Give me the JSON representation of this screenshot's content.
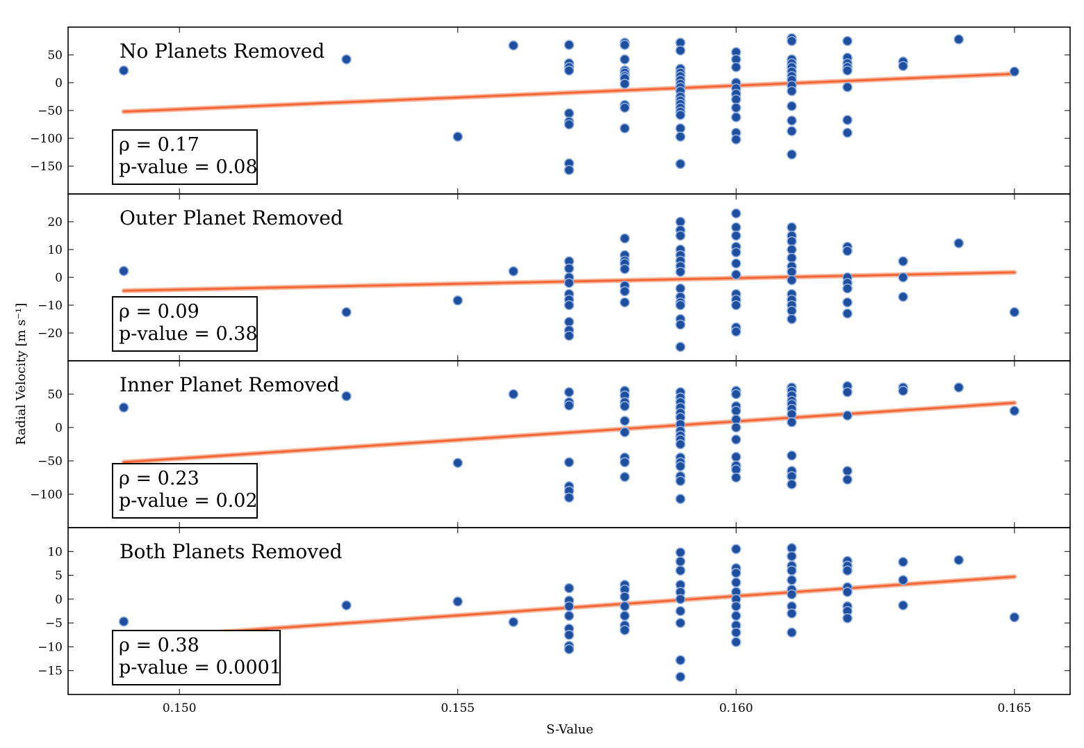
{
  "colors": {
    "points": "#1f4e9e",
    "fit": "#f2663a",
    "fit_glow": "#f8b99c"
  },
  "chart_data": {
    "type": "scatter",
    "xlabel": "S-Value",
    "ylabel": "Radial Velocity [m s⁻¹]",
    "xlim": [
      0.148,
      0.166
    ],
    "xticks": [
      "0.150",
      "0.155",
      "0.160",
      "0.165"
    ],
    "xtick_values": [
      0.15,
      0.155,
      0.16,
      0.165
    ],
    "panels": [
      {
        "title": "No Planets Removed",
        "rho_label": "ρ = 0.17",
        "pvalue_label": "p-value = 0.08",
        "ylim": [
          -200,
          100
        ],
        "yticks": [
          50,
          0,
          -50,
          -100,
          -150
        ],
        "ytick_labels": [
          "50",
          "0",
          "−50",
          "−100",
          "−150"
        ],
        "fit": {
          "x": [
            0.149,
            0.165
          ],
          "y": [
            -52,
            16
          ]
        },
        "points": [
          [
            0.149,
            22
          ],
          [
            0.153,
            42
          ],
          [
            0.155,
            -97
          ],
          [
            0.156,
            67
          ],
          [
            0.157,
            68
          ],
          [
            0.157,
            35
          ],
          [
            0.157,
            28
          ],
          [
            0.157,
            22
          ],
          [
            0.157,
            -55
          ],
          [
            0.157,
            -70
          ],
          [
            0.157,
            -75
          ],
          [
            0.157,
            -145
          ],
          [
            0.157,
            -157
          ],
          [
            0.158,
            72
          ],
          [
            0.158,
            68
          ],
          [
            0.158,
            42
          ],
          [
            0.158,
            22
          ],
          [
            0.158,
            18
          ],
          [
            0.158,
            12
          ],
          [
            0.158,
            8
          ],
          [
            0.158,
            -2
          ],
          [
            0.158,
            -40
          ],
          [
            0.158,
            -45
          ],
          [
            0.158,
            -82
          ],
          [
            0.159,
            72
          ],
          [
            0.159,
            58
          ],
          [
            0.159,
            25
          ],
          [
            0.159,
            18
          ],
          [
            0.159,
            12
          ],
          [
            0.159,
            5
          ],
          [
            0.159,
            -2
          ],
          [
            0.159,
            -8
          ],
          [
            0.159,
            -15
          ],
          [
            0.159,
            -25
          ],
          [
            0.159,
            -32
          ],
          [
            0.159,
            -38
          ],
          [
            0.159,
            -45
          ],
          [
            0.159,
            -52
          ],
          [
            0.159,
            -58
          ],
          [
            0.159,
            -82
          ],
          [
            0.159,
            -97
          ],
          [
            0.159,
            -146
          ],
          [
            0.16,
            55
          ],
          [
            0.16,
            42
          ],
          [
            0.16,
            28
          ],
          [
            0.16,
            0
          ],
          [
            0.16,
            -10
          ],
          [
            0.16,
            -20
          ],
          [
            0.16,
            -30
          ],
          [
            0.16,
            -45
          ],
          [
            0.16,
            -62
          ],
          [
            0.16,
            -90
          ],
          [
            0.16,
            -102
          ],
          [
            0.161,
            80
          ],
          [
            0.161,
            75
          ],
          [
            0.161,
            42
          ],
          [
            0.161,
            35
          ],
          [
            0.161,
            28
          ],
          [
            0.161,
            20
          ],
          [
            0.161,
            12
          ],
          [
            0.161,
            5
          ],
          [
            0.161,
            -5
          ],
          [
            0.161,
            -15
          ],
          [
            0.161,
            -42
          ],
          [
            0.161,
            -68
          ],
          [
            0.161,
            -87
          ],
          [
            0.161,
            -129
          ],
          [
            0.162,
            75
          ],
          [
            0.162,
            45
          ],
          [
            0.162,
            35
          ],
          [
            0.162,
            28
          ],
          [
            0.162,
            22
          ],
          [
            0.162,
            -8
          ],
          [
            0.162,
            -67
          ],
          [
            0.162,
            -90
          ],
          [
            0.163,
            38
          ],
          [
            0.163,
            30
          ],
          [
            0.164,
            78
          ],
          [
            0.165,
            20
          ]
        ]
      },
      {
        "title": "Outer Planet Removed",
        "rho_label": "ρ = 0.09",
        "pvalue_label": "p-value = 0.38",
        "ylim": [
          -30,
          30
        ],
        "yticks": [
          20,
          10,
          0,
          -10,
          -20
        ],
        "ytick_labels": [
          "20",
          "10",
          "0",
          "−10",
          "−20"
        ],
        "fit": {
          "x": [
            0.149,
            0.165
          ],
          "y": [
            -4.8,
            1.8
          ]
        },
        "points": [
          [
            0.149,
            2.3
          ],
          [
            0.153,
            -12.5
          ],
          [
            0.155,
            -8.3
          ],
          [
            0.156,
            2.2
          ],
          [
            0.157,
            5.8
          ],
          [
            0.157,
            3.2
          ],
          [
            0.157,
            0
          ],
          [
            0.157,
            -2
          ],
          [
            0.157,
            -6
          ],
          [
            0.157,
            -8
          ],
          [
            0.157,
            -10
          ],
          [
            0.157,
            -16
          ],
          [
            0.157,
            -19
          ],
          [
            0.157,
            -21
          ],
          [
            0.158,
            14
          ],
          [
            0.158,
            8
          ],
          [
            0.158,
            6
          ],
          [
            0.158,
            5
          ],
          [
            0.158,
            3
          ],
          [
            0.158,
            -3
          ],
          [
            0.158,
            -5
          ],
          [
            0.158,
            -9
          ],
          [
            0.159,
            20
          ],
          [
            0.159,
            17
          ],
          [
            0.159,
            15
          ],
          [
            0.159,
            10
          ],
          [
            0.159,
            8
          ],
          [
            0.159,
            6
          ],
          [
            0.159,
            4
          ],
          [
            0.159,
            2
          ],
          [
            0.159,
            -4
          ],
          [
            0.159,
            -7
          ],
          [
            0.159,
            -9
          ],
          [
            0.159,
            -10
          ],
          [
            0.159,
            -15
          ],
          [
            0.159,
            -17
          ],
          [
            0.159,
            -25
          ],
          [
            0.16,
            23
          ],
          [
            0.16,
            18
          ],
          [
            0.16,
            15
          ],
          [
            0.16,
            11
          ],
          [
            0.16,
            9
          ],
          [
            0.16,
            5
          ],
          [
            0.16,
            1
          ],
          [
            0.16,
            -6
          ],
          [
            0.16,
            -8
          ],
          [
            0.16,
            -10
          ],
          [
            0.16,
            -18
          ],
          [
            0.16,
            -19.5
          ],
          [
            0.161,
            18
          ],
          [
            0.161,
            15
          ],
          [
            0.161,
            13
          ],
          [
            0.161,
            10
          ],
          [
            0.161,
            7
          ],
          [
            0.161,
            4
          ],
          [
            0.161,
            2
          ],
          [
            0.161,
            -1
          ],
          [
            0.161,
            -6
          ],
          [
            0.161,
            -8
          ],
          [
            0.161,
            -10
          ],
          [
            0.161,
            -12
          ],
          [
            0.161,
            -15
          ],
          [
            0.162,
            11
          ],
          [
            0.162,
            9.5
          ],
          [
            0.162,
            0
          ],
          [
            0.162,
            -2
          ],
          [
            0.162,
            -4
          ],
          [
            0.162,
            -9
          ],
          [
            0.162,
            -13
          ],
          [
            0.163,
            5.8
          ],
          [
            0.163,
            0
          ],
          [
            0.163,
            -7
          ],
          [
            0.164,
            12.3
          ],
          [
            0.165,
            -12.5
          ]
        ]
      },
      {
        "title": "Inner Planet Removed",
        "rho_label": "ρ = 0.23",
        "pvalue_label": "p-value = 0.02",
        "ylim": [
          -150,
          100
        ],
        "yticks": [
          50,
          0,
          -50,
          -100
        ],
        "ytick_labels": [
          "50",
          "0",
          "−50",
          "−100"
        ],
        "fit": {
          "x": [
            0.149,
            0.165
          ],
          "y": [
            -52,
            37
          ]
        },
        "points": [
          [
            0.149,
            30
          ],
          [
            0.153,
            47
          ],
          [
            0.155,
            -53
          ],
          [
            0.156,
            50
          ],
          [
            0.157,
            53
          ],
          [
            0.157,
            38
          ],
          [
            0.157,
            33
          ],
          [
            0.157,
            -52
          ],
          [
            0.157,
            -88
          ],
          [
            0.157,
            -95
          ],
          [
            0.157,
            -105
          ],
          [
            0.158,
            55
          ],
          [
            0.158,
            48
          ],
          [
            0.158,
            38
          ],
          [
            0.158,
            32
          ],
          [
            0.158,
            10
          ],
          [
            0.158,
            -7
          ],
          [
            0.158,
            -45
          ],
          [
            0.158,
            -52
          ],
          [
            0.158,
            -74
          ],
          [
            0.159,
            53
          ],
          [
            0.159,
            45
          ],
          [
            0.159,
            38
          ],
          [
            0.159,
            30
          ],
          [
            0.159,
            22
          ],
          [
            0.159,
            15
          ],
          [
            0.159,
            5
          ],
          [
            0.159,
            -5
          ],
          [
            0.159,
            -12
          ],
          [
            0.159,
            -18
          ],
          [
            0.159,
            -25
          ],
          [
            0.159,
            -45
          ],
          [
            0.159,
            -52
          ],
          [
            0.159,
            -58
          ],
          [
            0.159,
            -73
          ],
          [
            0.159,
            -80
          ],
          [
            0.159,
            -107
          ],
          [
            0.16,
            55
          ],
          [
            0.16,
            50
          ],
          [
            0.16,
            32
          ],
          [
            0.16,
            25
          ],
          [
            0.16,
            12
          ],
          [
            0.16,
            0
          ],
          [
            0.16,
            -18
          ],
          [
            0.16,
            -44
          ],
          [
            0.16,
            -57
          ],
          [
            0.16,
            -63
          ],
          [
            0.16,
            -75
          ],
          [
            0.161,
            60
          ],
          [
            0.161,
            55
          ],
          [
            0.161,
            48
          ],
          [
            0.161,
            40
          ],
          [
            0.161,
            35
          ],
          [
            0.161,
            28
          ],
          [
            0.161,
            20
          ],
          [
            0.161,
            8
          ],
          [
            0.161,
            -42
          ],
          [
            0.161,
            -65
          ],
          [
            0.161,
            -73
          ],
          [
            0.161,
            -85
          ],
          [
            0.162,
            62
          ],
          [
            0.162,
            53
          ],
          [
            0.162,
            18
          ],
          [
            0.162,
            -65
          ],
          [
            0.162,
            -78
          ],
          [
            0.163,
            60
          ],
          [
            0.163,
            55
          ],
          [
            0.164,
            60
          ],
          [
            0.165,
            25
          ]
        ]
      },
      {
        "title": "Both Planets Removed",
        "rho_label": "ρ = 0.38",
        "pvalue_label": "p-value = 0.0001",
        "ylim": [
          -20,
          15
        ],
        "yticks": [
          10,
          5,
          0,
          -5,
          -10,
          -15
        ],
        "ytick_labels": [
          "10",
          "5",
          "0",
          "−5",
          "−10",
          "−15"
        ],
        "fit": {
          "x": [
            0.149,
            0.165
          ],
          "y": [
            -8.3,
            4.7
          ]
        },
        "points": [
          [
            0.149,
            -4.7
          ],
          [
            0.153,
            -1.3
          ],
          [
            0.155,
            -0.5
          ],
          [
            0.156,
            -4.8
          ],
          [
            0.157,
            2.3
          ],
          [
            0.157,
            -0.3
          ],
          [
            0.157,
            -1.5
          ],
          [
            0.157,
            -3.5
          ],
          [
            0.157,
            -6.2
          ],
          [
            0.157,
            -7.5
          ],
          [
            0.157,
            -9.8
          ],
          [
            0.157,
            -10.5
          ],
          [
            0.158,
            3
          ],
          [
            0.158,
            2
          ],
          [
            0.158,
            0.5
          ],
          [
            0.158,
            -1.5
          ],
          [
            0.158,
            -3.5
          ],
          [
            0.158,
            -5.5
          ],
          [
            0.158,
            -6.5
          ],
          [
            0.159,
            9.8
          ],
          [
            0.159,
            7.9
          ],
          [
            0.159,
            6
          ],
          [
            0.159,
            3
          ],
          [
            0.159,
            1.5
          ],
          [
            0.159,
            0
          ],
          [
            0.159,
            -2.5
          ],
          [
            0.159,
            -5
          ],
          [
            0.159,
            -12.8
          ],
          [
            0.159,
            -16.3
          ],
          [
            0.16,
            10.5
          ],
          [
            0.16,
            6.5
          ],
          [
            0.16,
            5.5
          ],
          [
            0.16,
            3.5
          ],
          [
            0.16,
            1.5
          ],
          [
            0.16,
            0
          ],
          [
            0.16,
            -1.5
          ],
          [
            0.16,
            -3.5
          ],
          [
            0.16,
            -5.5
          ],
          [
            0.16,
            -7
          ],
          [
            0.16,
            -9
          ],
          [
            0.161,
            10.7
          ],
          [
            0.161,
            9
          ],
          [
            0.161,
            7
          ],
          [
            0.161,
            6
          ],
          [
            0.161,
            4
          ],
          [
            0.161,
            2
          ],
          [
            0.161,
            1
          ],
          [
            0.161,
            -1.5
          ],
          [
            0.161,
            -3
          ],
          [
            0.161,
            -7
          ],
          [
            0.162,
            8
          ],
          [
            0.162,
            7
          ],
          [
            0.162,
            6
          ],
          [
            0.162,
            2.5
          ],
          [
            0.162,
            1.5
          ],
          [
            0.162,
            -1.5
          ],
          [
            0.162,
            -2.5
          ],
          [
            0.162,
            -4
          ],
          [
            0.163,
            7.8
          ],
          [
            0.163,
            4
          ],
          [
            0.163,
            -1.3
          ],
          [
            0.164,
            8.2
          ],
          [
            0.165,
            -3.8
          ]
        ]
      }
    ]
  }
}
